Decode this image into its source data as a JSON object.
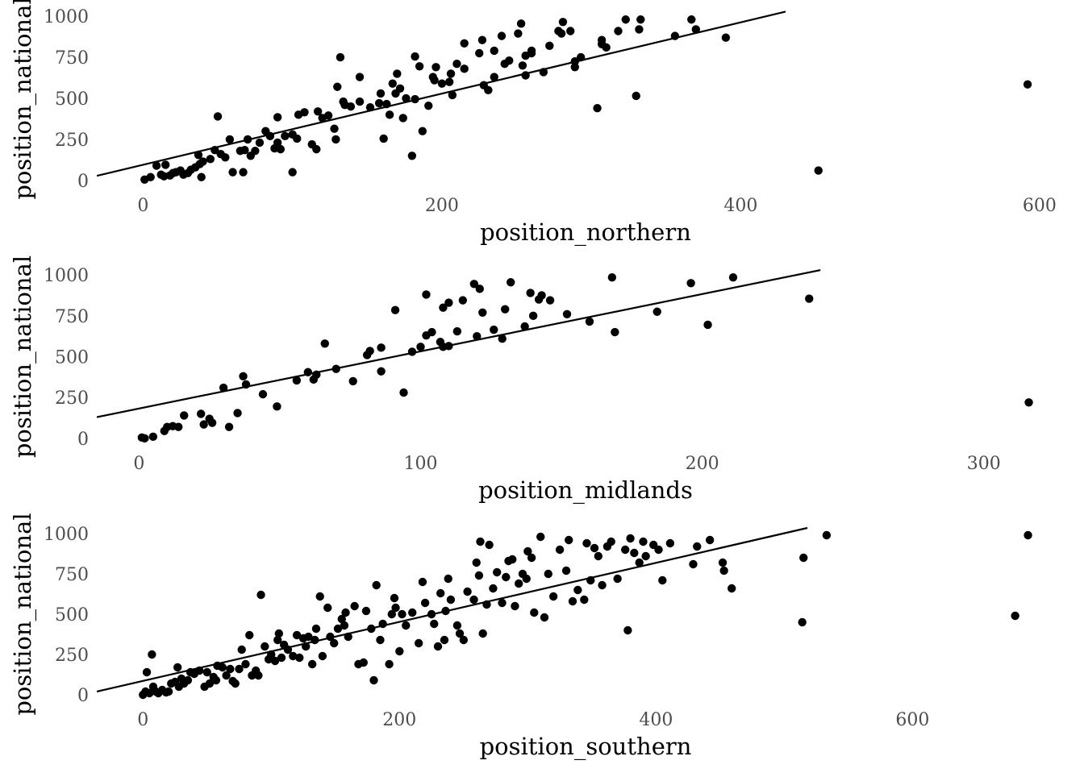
{
  "chart_data": [
    {
      "type": "scatter",
      "xlabel": "position_northern",
      "ylabel": "position_national",
      "color": "#000000",
      "xlim": [
        -31,
        606
      ],
      "ylim": [
        -40,
        1060
      ],
      "xticks": [
        0,
        200,
        400,
        600
      ],
      "yticks": [
        0,
        250,
        500,
        750,
        1000
      ],
      "x": [
        1,
        5,
        9,
        12,
        15,
        14,
        18,
        20,
        22,
        25,
        27,
        30,
        32,
        35,
        37,
        38,
        40,
        39,
        45,
        48,
        50,
        52,
        55,
        58,
        60,
        65,
        67,
        68,
        70,
        72,
        75,
        78,
        82,
        85,
        88,
        90,
        90,
        92,
        95,
        100,
        100,
        103,
        104,
        108,
        113,
        116,
        117,
        120,
        124,
        128,
        129,
        130,
        132,
        134,
        135,
        139,
        145,
        145,
        152,
        158,
        159,
        161,
        163,
        165,
        167,
        169,
        170,
        172,
        174,
        176,
        180,
        182,
        182,
        185,
        187,
        191,
        194,
        195,
        196,
        200,
        205,
        206,
        207,
        210,
        215,
        215,
        225,
        227,
        228,
        231,
        235,
        235,
        240,
        242,
        245,
        251,
        253,
        254,
        256,
        256,
        260,
        260,
        268,
        272,
        278,
        280,
        281,
        286,
        289,
        289,
        293,
        304,
        307,
        307,
        310,
        318,
        323,
        330,
        332,
        333,
        356,
        367,
        370,
        390,
        452,
        592
      ],
      "values": [
        15,
        30,
        100,
        45,
        105,
        35,
        40,
        55,
        60,
        70,
        45,
        55,
        75,
        90,
        165,
        110,
        125,
        30,
        140,
        195,
        400,
        170,
        150,
        260,
        60,
        190,
        60,
        195,
        260,
        160,
        190,
        240,
        310,
        280,
        205,
        240,
        395,
        200,
        280,
        290,
        60,
        265,
        410,
        425,
        230,
        200,
        430,
        390,
        405,
        325,
        260,
        580,
        760,
        490,
        470,
        460,
        490,
        640,
        455,
        480,
        540,
        265,
        475,
        410,
        600,
        540,
        660,
        570,
        390,
        510,
        160,
        505,
        765,
        705,
        310,
        465,
        640,
        620,
        700,
        600,
        610,
        660,
        530,
        720,
        690,
        845,
        785,
        865,
        590,
        560,
        800,
        640,
        890,
        720,
        740,
        905,
        965,
        710,
        650,
        770,
        800,
        785,
        670,
        830,
        920,
        905,
        975,
        920,
        735,
        700,
        760,
        450,
        840,
        865,
        820,
        920,
        990,
        525,
        930,
        990,
        890,
        990,
        930,
        880,
        70,
        595
      ],
      "fit_line": {
        "x": [
          -31,
          430
        ],
        "values": [
          38,
          1038
        ]
      }
    },
    {
      "type": "scatter",
      "xlabel": "position_midlands",
      "ylabel": "position_national",
      "color": "#000000",
      "xlim": [
        -15,
        323
      ],
      "ylim": [
        -40,
        1060
      ],
      "xticks": [
        0,
        100,
        200,
        300
      ],
      "yticks": [
        0,
        250,
        500,
        750,
        1000
      ],
      "x": [
        1,
        2,
        5,
        9,
        10,
        12,
        14,
        16,
        22,
        23,
        25,
        26,
        30,
        32,
        35,
        37,
        38,
        44,
        49,
        56,
        60,
        62,
        63,
        66,
        70,
        76,
        81,
        82,
        86,
        86,
        91,
        94,
        97,
        100,
        102,
        102,
        104,
        107,
        108,
        108,
        110,
        110,
        113,
        115,
        119,
        120,
        121,
        122,
        126,
        129,
        130,
        132,
        137,
        139,
        140,
        142,
        143,
        146,
        152,
        160,
        168,
        169,
        184,
        196,
        202,
        211,
        238,
        316
      ],
      "values": [
        15,
        10,
        20,
        55,
        80,
        85,
        80,
        150,
        160,
        95,
        130,
        105,
        320,
        80,
        165,
        390,
        340,
        280,
        205,
        365,
        415,
        370,
        400,
        590,
        435,
        360,
        520,
        545,
        565,
        420,
        795,
        290,
        540,
        570,
        640,
        890,
        660,
        600,
        570,
        810,
        840,
        575,
        665,
        855,
        955,
        635,
        925,
        780,
        675,
        620,
        800,
        965,
        695,
        900,
        760,
        860,
        885,
        855,
        770,
        725,
        995,
        660,
        785,
        960,
        705,
        995,
        865,
        230
      ],
      "fit_line": {
        "x": [
          -15,
          242
        ],
        "values": [
          140,
          1040
        ]
      }
    },
    {
      "type": "scatter",
      "xlabel": "position_southern",
      "ylabel": "position_national",
      "color": "#000000",
      "xlim": [
        -36,
        706
      ],
      "ylim": [
        -40,
        1060
      ],
      "xticks": [
        0,
        200,
        400,
        600
      ],
      "yticks": [
        0,
        250,
        500,
        750,
        1000
      ],
      "x": [
        0,
        2,
        3,
        5,
        7,
        8,
        10,
        12,
        15,
        18,
        20,
        22,
        25,
        27,
        28,
        30,
        32,
        35,
        37,
        40,
        44,
        48,
        50,
        52,
        55,
        57,
        58,
        62,
        65,
        68,
        70,
        72,
        75,
        77,
        80,
        83,
        85,
        88,
        90,
        92,
        95,
        98,
        100,
        103,
        105,
        106,
        108,
        110,
        113,
        117,
        120,
        122,
        125,
        127,
        129,
        132,
        134,
        135,
        138,
        140,
        144,
        146,
        149,
        152,
        155,
        157,
        158,
        160,
        165,
        168,
        172,
        174,
        178,
        180,
        182,
        185,
        187,
        192,
        194,
        196,
        197,
        200,
        202,
        205,
        210,
        215,
        218,
        220,
        225,
        227,
        230,
        232,
        235,
        236,
        238,
        240,
        245,
        247,
        250,
        253,
        258,
        260,
        262,
        263,
        265,
        268,
        270,
        273,
        276,
        280,
        283,
        285,
        288,
        290,
        293,
        296,
        299,
        300,
        303,
        305,
        310,
        313,
        316,
        320,
        325,
        330,
        332,
        335,
        339,
        344,
        346,
        349,
        352,
        355,
        358,
        362,
        365,
        370,
        376,
        378,
        380,
        383,
        387,
        390,
        392,
        398,
        402,
        405,
        411,
        429,
        432,
        442,
        452,
        453,
        459,
        514,
        515,
        533,
        680,
        690
      ],
      "values": [
        10,
        30,
        150,
        20,
        260,
        60,
        30,
        20,
        40,
        25,
        30,
        80,
        90,
        180,
        60,
        110,
        80,
        100,
        150,
        140,
        160,
        60,
        150,
        80,
        120,
        100,
        190,
        180,
        130,
        170,
        95,
        80,
        170,
        290,
        200,
        380,
        130,
        160,
        130,
        630,
        310,
        230,
        260,
        220,
        350,
        390,
        240,
        320,
        290,
        250,
        380,
        240,
        360,
        310,
        370,
        200,
        350,
        420,
        620,
        250,
        550,
        370,
        330,
        420,
        480,
        440,
        520,
        370,
        560,
        200,
        210,
        530,
        420,
        100,
        690,
        350,
        450,
        200,
        510,
        610,
        550,
        280,
        510,
        440,
        520,
        330,
        710,
        580,
        510,
        450,
        310,
        640,
        350,
        530,
        730,
        600,
        440,
        390,
        350,
        650,
        600,
        830,
        750,
        960,
        390,
        570,
        940,
        670,
        770,
        580,
        740,
        840,
        850,
        560,
        700,
        760,
        730,
        900,
        860,
        520,
        990,
        490,
        760,
        620,
        910,
        780,
        970,
        590,
        660,
        600,
        950,
        720,
        920,
        870,
        690,
        930,
        960,
        730,
        910,
        410,
        980,
        890,
        830,
        960,
        870,
        940,
        910,
        720,
        950,
        820,
        930,
        970,
        830,
        780,
        670,
        460,
        860,
        1000,
        500,
        1000
      ],
      "fit_line": {
        "x": [
          -36,
          518
        ],
        "values": [
          30,
          1045
        ]
      }
    }
  ]
}
